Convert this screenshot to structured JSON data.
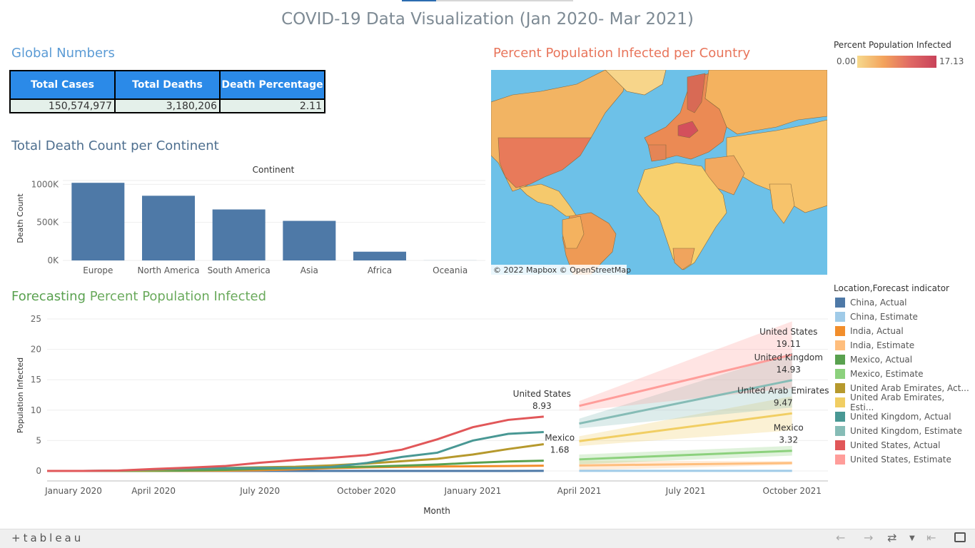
{
  "header": {
    "title": "COVID-19 Data Visualization (Jan 2020- Mar 2021)"
  },
  "global": {
    "title": "Global Numbers",
    "headers": [
      "Total Cases",
      "Total Deaths",
      "Death Percentage"
    ],
    "values": [
      "150,574,977",
      "3,180,206",
      "2.11"
    ]
  },
  "continent": {
    "title": "Total Death Count per Continent",
    "header": "Continent",
    "ylabel": "Death Count",
    "yticks": [
      "1000K",
      "500K",
      "0K"
    ]
  },
  "map": {
    "title": "Percent Population Infected per Country",
    "attribution": "© 2022 Mapbox  © OpenStreetMap",
    "legend_title": "Percent Population Infected",
    "legend_min": "0.00",
    "legend_max": "17.13"
  },
  "forecast": {
    "title_a": "Forecasting",
    "title_b": " Percent Population Infected",
    "ylabel": "Population Infected",
    "xlabel": "Month",
    "legend_title": "Location,Forecast indicator",
    "legend": [
      {
        "label": "China, Actual",
        "color": "#4e79a7"
      },
      {
        "label": "China, Estimate",
        "color": "#a0cbe8"
      },
      {
        "label": "India, Actual",
        "color": "#f28e2b"
      },
      {
        "label": "India, Estimate",
        "color": "#ffbe7d"
      },
      {
        "label": "Mexico, Actual",
        "color": "#59a14f"
      },
      {
        "label": "Mexico, Estimate",
        "color": "#8cd17d"
      },
      {
        "label": "United Arab Emirates, Act...",
        "color": "#b6992d"
      },
      {
        "label": "United Arab Emirates, Esti...",
        "color": "#f1ce63"
      },
      {
        "label": "United Kingdom, Actual",
        "color": "#499894"
      },
      {
        "label": "United Kingdom, Estimate",
        "color": "#86bcb6"
      },
      {
        "label": "United States, Actual",
        "color": "#e15759"
      },
      {
        "label": "United States, Estimate",
        "color": "#ff9d9a"
      }
    ],
    "annotations": [
      {
        "name": "United States",
        "value": "8.93"
      },
      {
        "name": "Mexico",
        "value": "1.68"
      },
      {
        "name": "United States",
        "value": "19.11"
      },
      {
        "name": "United Kingdom",
        "value": "14.93"
      },
      {
        "name": "United Arab Emirates",
        "value": "9.47"
      },
      {
        "name": "Mexico",
        "value": "3.32"
      }
    ]
  },
  "footer": {
    "logo": "+tableau"
  },
  "chart_data": [
    {
      "type": "bar",
      "title": "Total Death Count per Continent",
      "xlabel": "Continent",
      "ylabel": "Death Count",
      "categories": [
        "Europe",
        "North America",
        "South America",
        "Asia",
        "Africa",
        "Oceania"
      ],
      "values": [
        1020000,
        850000,
        670000,
        520000,
        115000,
        1000
      ],
      "ylim": [
        0,
        1050000
      ],
      "color": "#4e79a7"
    },
    {
      "type": "line",
      "title": "Forecasting Percent Population Infected",
      "xlabel": "Month",
      "ylabel": "Population Infected",
      "ylim": [
        0,
        25
      ],
      "yticks": [
        0,
        5,
        10,
        15,
        20,
        25
      ],
      "xticks": [
        "January 2020",
        "April 2020",
        "July 2020",
        "October 2020",
        "January 2021",
        "April 2021",
        "July 2021",
        "October 2021"
      ],
      "x_actual": [
        "2020-01",
        "2020-02",
        "2020-03",
        "2020-04",
        "2020-05",
        "2020-06",
        "2020-07",
        "2020-08",
        "2020-09",
        "2020-10",
        "2020-11",
        "2020-12",
        "2021-01",
        "2021-02",
        "2021-03"
      ],
      "x_estimate": [
        "2021-04",
        "2021-10"
      ],
      "series": [
        {
          "name": "China, Actual",
          "color": "#4e79a7",
          "values": [
            0,
            0,
            0,
            0,
            0,
            0,
            0,
            0,
            0,
            0,
            0,
            0,
            0,
            0,
            0.01
          ]
        },
        {
          "name": "India, Actual",
          "color": "#f28e2b",
          "values": [
            0,
            0,
            0,
            0,
            0.01,
            0.04,
            0.12,
            0.26,
            0.45,
            0.59,
            0.68,
            0.74,
            0.77,
            0.8,
            0.86
          ]
        },
        {
          "name": "Mexico, Actual",
          "color": "#59a14f",
          "values": [
            0,
            0,
            0,
            0.02,
            0.07,
            0.17,
            0.32,
            0.46,
            0.58,
            0.71,
            0.86,
            1.05,
            1.34,
            1.55,
            1.68
          ]
        },
        {
          "name": "United Arab Emirates, Act...",
          "color": "#b6992d",
          "values": [
            0,
            0,
            0.01,
            0.12,
            0.35,
            0.48,
            0.6,
            0.69,
            0.91,
            1.21,
            1.6,
            2.0,
            2.7,
            3.6,
            4.4
          ]
        },
        {
          "name": "United Kingdom, Actual",
          "color": "#499894",
          "values": [
            0,
            0,
            0.04,
            0.25,
            0.4,
            0.45,
            0.5,
            0.5,
            0.65,
            1.3,
            2.3,
            3.0,
            5.0,
            6.1,
            6.4
          ]
        },
        {
          "name": "United States, Actual",
          "color": "#e15759",
          "values": [
            0,
            0,
            0.06,
            0.32,
            0.55,
            0.8,
            1.35,
            1.8,
            2.15,
            2.6,
            3.5,
            5.2,
            7.2,
            8.4,
            8.93
          ]
        },
        {
          "name": "China, Estimate",
          "color": "#a0cbe8",
          "values": [
            0.01,
            0.01
          ]
        },
        {
          "name": "India, Estimate",
          "color": "#ffbe7d",
          "values": [
            0.9,
            1.3
          ]
        },
        {
          "name": "Mexico, Estimate",
          "color": "#8cd17d",
          "values": [
            1.9,
            3.32
          ]
        },
        {
          "name": "United Arab Emirates, Esti...",
          "color": "#f1ce63",
          "values": [
            4.9,
            9.47
          ]
        },
        {
          "name": "United Kingdom, Estimate",
          "color": "#86bcb6",
          "values": [
            7.8,
            14.93
          ]
        },
        {
          "name": "United States, Estimate",
          "color": "#ff9d9a",
          "values": [
            10.7,
            19.11
          ]
        }
      ]
    }
  ]
}
